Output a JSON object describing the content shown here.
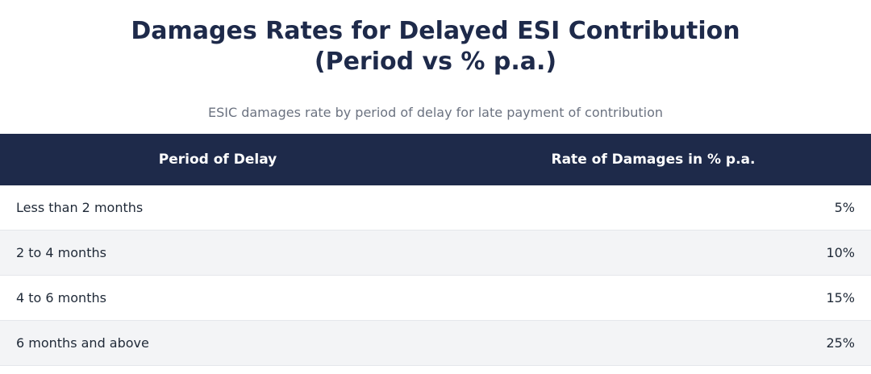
{
  "title": {
    "line1": "Damages Rates for Delayed ESI Contribution",
    "line2": "(Period vs % p.a.)"
  },
  "subtitle": "ESIC damages rate by period of delay for late payment of contribution",
  "table": {
    "headers": {
      "period": "Period of Delay",
      "rate": "Rate of Damages in % p.a."
    },
    "rows": [
      {
        "period": "Less than 2 months",
        "rate": "5%"
      },
      {
        "period": "2 to 4 months",
        "rate": "10%"
      },
      {
        "period": "4 to 6 months",
        "rate": "15%"
      },
      {
        "period": "6 months and above",
        "rate": "25%"
      }
    ]
  },
  "colors": {
    "header_bg": "#1e2a4a",
    "title": "#1e2a4a",
    "subtitle": "#6b7280",
    "row_alt": "#f3f4f6"
  }
}
